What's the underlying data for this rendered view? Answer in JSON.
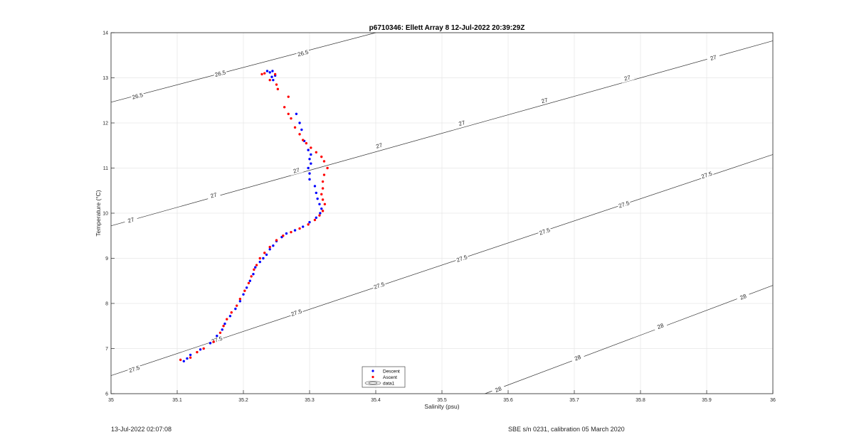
{
  "chart_data": {
    "type": "scatter",
    "title": "p6710346: Ellett Array 8 12-Jul-2022 20:39:29Z",
    "xlabel": "Salinity (psu)",
    "ylabel": "Temperature (°C)",
    "xlim": [
      35,
      36
    ],
    "ylim": [
      6,
      14
    ],
    "xticks": [
      35,
      35.1,
      35.2,
      35.3,
      35.4,
      35.5,
      35.6,
      35.7,
      35.8,
      35.9,
      36
    ],
    "xtick_labels": [
      "35",
      "35.1",
      "35.2",
      "35.3",
      "35.4",
      "35.5",
      "35.6",
      "35.7",
      "35.8",
      "35.9",
      "36"
    ],
    "yticks": [
      6,
      7,
      8,
      9,
      10,
      11,
      12,
      13,
      14
    ],
    "ytick_labels": [
      "6",
      "7",
      "8",
      "9",
      "10",
      "11",
      "12",
      "13",
      "14"
    ],
    "grid": true,
    "legend": {
      "placement": "bottom-center",
      "entries": [
        "Descent",
        "Ascent",
        "data1"
      ]
    },
    "contours": [
      {
        "level": "26.5",
        "points": [
          [
            35.0,
            12.46
          ],
          [
            35.4,
            14.0
          ]
        ],
        "labels": [
          [
            35.04,
            12.6
          ],
          [
            35.165,
            13.1
          ],
          [
            35.29,
            13.55
          ]
        ]
      },
      {
        "level": "27",
        "points": [
          [
            35.0,
            9.72
          ],
          [
            36.0,
            13.82
          ]
        ],
        "labels": [
          [
            35.03,
            9.85
          ],
          [
            35.155,
            10.4
          ],
          [
            35.28,
            10.95
          ],
          [
            35.405,
            11.5
          ],
          [
            35.53,
            12.0
          ],
          [
            35.655,
            12.5
          ],
          [
            35.78,
            13.0
          ],
          [
            35.91,
            13.45
          ]
        ]
      },
      {
        "level": "27.5",
        "points": [
          [
            35.0,
            6.4
          ],
          [
            36.0,
            11.3
          ]
        ],
        "labels": [
          [
            35.035,
            6.55
          ],
          [
            35.16,
            7.2
          ],
          [
            35.28,
            7.8
          ],
          [
            35.405,
            8.4
          ],
          [
            35.53,
            9.0
          ],
          [
            35.655,
            9.6
          ],
          [
            35.775,
            10.2
          ],
          [
            35.9,
            10.85
          ]
        ]
      },
      {
        "level": "28",
        "points": [
          [
            35.565,
            6.0
          ],
          [
            36.0,
            8.4
          ]
        ],
        "labels": [
          [
            35.585,
            6.1
          ],
          [
            35.705,
            6.8
          ],
          [
            35.83,
            7.5
          ],
          [
            35.955,
            8.15
          ]
        ]
      }
    ],
    "series": [
      {
        "name": "Descent",
        "color": "#0000ff",
        "points": [
          [
            35.11,
            6.72
          ],
          [
            35.115,
            6.78
          ],
          [
            35.12,
            6.86
          ],
          [
            35.135,
            6.98
          ],
          [
            35.15,
            7.12
          ],
          [
            35.16,
            7.28
          ],
          [
            35.168,
            7.42
          ],
          [
            35.172,
            7.55
          ],
          [
            35.18,
            7.72
          ],
          [
            35.188,
            7.88
          ],
          [
            35.195,
            8.05
          ],
          [
            35.2,
            8.2
          ],
          [
            35.205,
            8.35
          ],
          [
            35.21,
            8.5
          ],
          [
            35.215,
            8.65
          ],
          [
            35.218,
            8.8
          ],
          [
            35.225,
            8.92
          ],
          [
            35.23,
            9.0
          ],
          [
            35.235,
            9.08
          ],
          [
            35.24,
            9.2
          ],
          [
            35.245,
            9.28
          ],
          [
            35.25,
            9.38
          ],
          [
            35.258,
            9.47
          ],
          [
            35.265,
            9.55
          ],
          [
            35.278,
            9.62
          ],
          [
            35.29,
            9.7
          ],
          [
            35.3,
            9.8
          ],
          [
            35.31,
            9.9
          ],
          [
            35.316,
            10.0
          ],
          [
            35.318,
            10.1
          ],
          [
            35.315,
            10.2
          ],
          [
            35.312,
            10.32
          ],
          [
            35.31,
            10.45
          ],
          [
            35.308,
            10.6
          ],
          [
            35.3,
            10.75
          ],
          [
            35.3,
            10.88
          ],
          [
            35.298,
            11.0
          ],
          [
            35.302,
            11.1
          ],
          [
            35.3,
            11.2
          ],
          [
            35.302,
            11.3
          ],
          [
            35.298,
            11.4
          ],
          [
            35.292,
            11.6
          ],
          [
            35.288,
            11.85
          ],
          [
            35.285,
            12.0
          ],
          [
            35.28,
            12.2
          ],
          [
            35.245,
            12.95
          ],
          [
            35.243,
            13.02
          ],
          [
            35.248,
            13.05
          ],
          [
            35.24,
            13.12
          ],
          [
            35.244,
            13.15
          ],
          [
            35.236,
            13.15
          ]
        ]
      },
      {
        "name": "Ascent",
        "color": "#ff0000",
        "points": [
          [
            35.105,
            6.75
          ],
          [
            35.12,
            6.8
          ],
          [
            35.13,
            6.92
          ],
          [
            35.14,
            7.0
          ],
          [
            35.155,
            7.15
          ],
          [
            35.165,
            7.35
          ],
          [
            35.17,
            7.5
          ],
          [
            35.175,
            7.65
          ],
          [
            35.182,
            7.8
          ],
          [
            35.19,
            7.95
          ],
          [
            35.195,
            8.1
          ],
          [
            35.202,
            8.28
          ],
          [
            35.208,
            8.45
          ],
          [
            35.212,
            8.6
          ],
          [
            35.216,
            8.75
          ],
          [
            35.22,
            8.85
          ],
          [
            35.225,
            9.0
          ],
          [
            35.232,
            9.12
          ],
          [
            35.24,
            9.25
          ],
          [
            35.25,
            9.4
          ],
          [
            35.26,
            9.5
          ],
          [
            35.272,
            9.58
          ],
          [
            35.285,
            9.66
          ],
          [
            35.298,
            9.75
          ],
          [
            35.308,
            9.85
          ],
          [
            35.315,
            9.95
          ],
          [
            35.32,
            10.05
          ],
          [
            35.323,
            10.2
          ],
          [
            35.32,
            10.3
          ],
          [
            35.318,
            10.42
          ],
          [
            35.32,
            10.55
          ],
          [
            35.32,
            10.7
          ],
          [
            35.322,
            10.85
          ],
          [
            35.327,
            11.0
          ],
          [
            35.322,
            11.15
          ],
          [
            35.318,
            11.25
          ],
          [
            35.31,
            11.35
          ],
          [
            35.302,
            11.45
          ],
          [
            35.295,
            11.55
          ],
          [
            35.29,
            11.62
          ],
          [
            35.285,
            11.75
          ],
          [
            35.278,
            11.9
          ],
          [
            35.272,
            12.1
          ],
          [
            35.268,
            12.2
          ],
          [
            35.262,
            12.35
          ],
          [
            35.268,
            12.58
          ],
          [
            35.252,
            12.75
          ],
          [
            35.25,
            12.85
          ],
          [
            35.24,
            12.95
          ],
          [
            35.232,
            13.1
          ],
          [
            35.228,
            13.08
          ],
          [
            35.248,
            13.08
          ]
        ]
      }
    ]
  },
  "footer": {
    "left": "13-Jul-2022 02:07:08",
    "right": "SBE s/n 0231, calibration 05 March 2020"
  }
}
